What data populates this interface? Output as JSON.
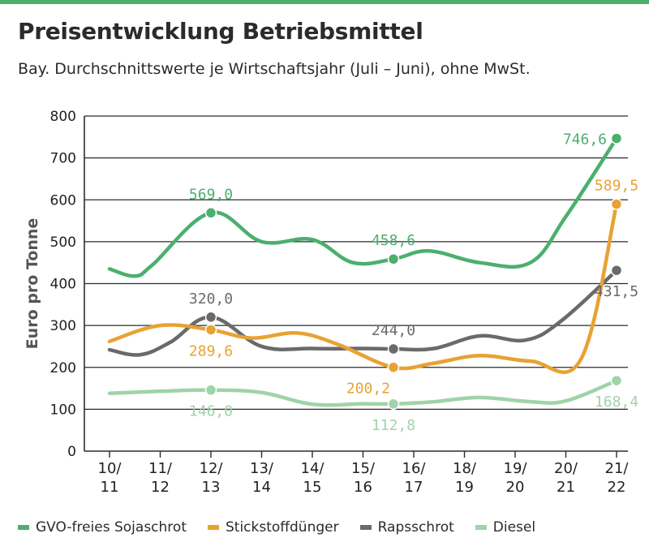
{
  "header": {
    "title": "Preisentwicklung Betriebsmittel",
    "subtitle": "Bay. Durchschnittswerte je Wirtschaftsjahr (Juli – Juni), ohne MwSt.",
    "accent_color": "#4caf6e"
  },
  "chart_data": {
    "type": "line",
    "title": "Preisentwicklung Betriebsmittel",
    "subtitle": "Bay. Durchschnittswerte je Wirtschaftsjahr (Juli – Juni), ohne MwSt.",
    "xlabel": "",
    "ylabel": "Euro pro Tonne",
    "ylim": [
      0,
      800
    ],
    "yticks": [
      0,
      100,
      200,
      300,
      400,
      500,
      600,
      700,
      800
    ],
    "grid": "horizontal",
    "legend_position": "bottom",
    "categories": [
      {
        "top": "10/",
        "bottom": "11"
      },
      {
        "top": "11/",
        "bottom": "12"
      },
      {
        "top": "12/",
        "bottom": "13"
      },
      {
        "top": "13/",
        "bottom": "14"
      },
      {
        "top": "14/",
        "bottom": "15"
      },
      {
        "top": "15/",
        "bottom": "16"
      },
      {
        "top": "16/",
        "bottom": "17"
      },
      {
        "top": "18/",
        "bottom": "19"
      },
      {
        "top": "19/",
        "bottom": "20"
      },
      {
        "top": "20/",
        "bottom": "21"
      },
      {
        "top": "21/",
        "bottom": "22"
      }
    ],
    "series": [
      {
        "name": "GVO-freies Sojaschrot",
        "color": "#4caf6e",
        "x": [
          0,
          0.5,
          0.85,
          2,
          3,
          4,
          4.8,
          5.6,
          6.3,
          7.3,
          8.3,
          9.0,
          10.0
        ],
        "y": [
          435,
          418,
          445,
          569,
          500,
          505,
          450,
          458.6,
          478,
          450,
          450,
          560,
          746.6
        ],
        "markers": [
          {
            "x": 2,
            "y": 569,
            "label": "569,0",
            "label_pos": "above"
          },
          {
            "x": 5.6,
            "y": 458.6,
            "label": "458,6",
            "label_pos": "above"
          },
          {
            "x": 10,
            "y": 746.6,
            "label": "746,6",
            "label_pos": "left"
          }
        ]
      },
      {
        "name": "Stickstoffdünger",
        "color": "#e8a233",
        "x": [
          0,
          1.0,
          2,
          2.8,
          3.7,
          4.5,
          5.6,
          6.4,
          7.3,
          8.3,
          9.3,
          10.0
        ],
        "y": [
          262,
          300,
          289.6,
          270,
          282,
          255,
          200.2,
          210,
          228,
          215,
          220,
          589.5
        ],
        "markers": [
          {
            "x": 2,
            "y": 289.6,
            "label": "289,6",
            "label_pos": "below"
          },
          {
            "x": 5.6,
            "y": 200.2,
            "label": "200,2",
            "label_pos": "below-left"
          },
          {
            "x": 10,
            "y": 589.5,
            "label": "589,5",
            "label_pos": "above"
          }
        ]
      },
      {
        "name": "Rapsschrot",
        "color": "#6a6a6a",
        "x": [
          0,
          0.6,
          1.2,
          2,
          3,
          4,
          5,
          5.6,
          6.4,
          7.3,
          8.2,
          8.9,
          10.0
        ],
        "y": [
          242,
          230,
          260,
          320,
          250,
          245,
          245,
          244,
          245,
          275,
          265,
          310,
          431.5
        ],
        "markers": [
          {
            "x": 2,
            "y": 320,
            "label": "320,0",
            "label_pos": "above"
          },
          {
            "x": 5.6,
            "y": 244,
            "label": "244,0",
            "label_pos": "above"
          },
          {
            "x": 10,
            "y": 431.5,
            "label": "431,5",
            "label_pos": "below"
          }
        ]
      },
      {
        "name": "Diesel",
        "color": "#9fd3a8",
        "x": [
          0,
          1,
          2,
          3,
          4,
          5,
          5.6,
          6.4,
          7.3,
          8.3,
          9.0,
          10.0
        ],
        "y": [
          138,
          143,
          146,
          140,
          112,
          113,
          112.8,
          118,
          128,
          118,
          120,
          168.4
        ],
        "markers": [
          {
            "x": 2,
            "y": 146,
            "label": "146,0",
            "label_pos": "below"
          },
          {
            "x": 5.6,
            "y": 112.8,
            "label": "112,8",
            "label_pos": "below"
          },
          {
            "x": 10,
            "y": 168.4,
            "label": "168,4",
            "label_pos": "below"
          }
        ]
      }
    ]
  }
}
